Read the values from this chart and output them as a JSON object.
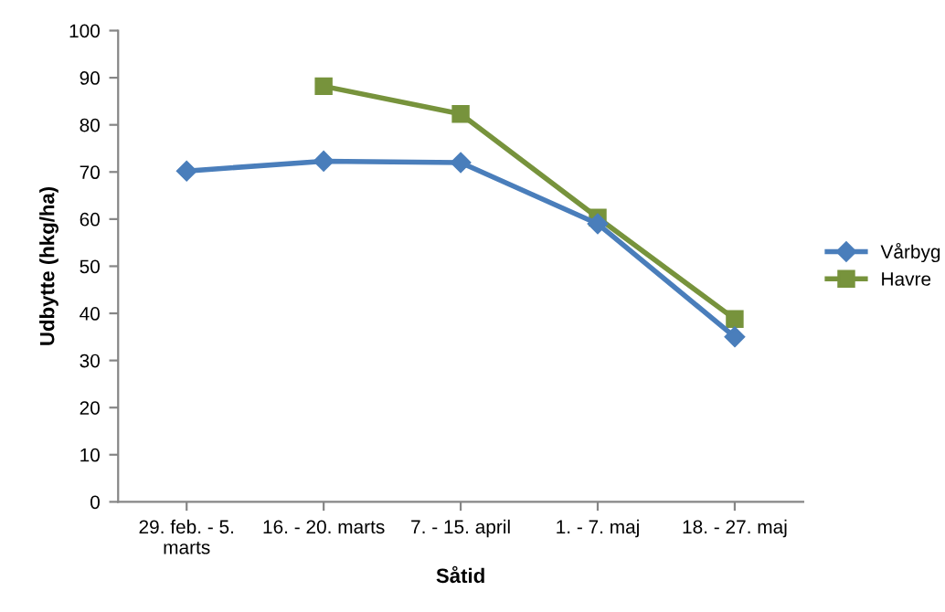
{
  "chart_data": {
    "type": "line",
    "xlabel": "Såtid",
    "ylabel": "Udbytte (hkg/ha)",
    "categories": [
      "29. feb. - 5.\nmarts",
      "16. - 20. marts",
      "7. - 15. april",
      "1. - 7. maj",
      "18. - 27. maj"
    ],
    "series": [
      {
        "name": "Vårbyg",
        "color": "#4a7ebb",
        "marker": "diamond",
        "values": [
          70.2,
          72.3,
          72,
          59,
          35
        ]
      },
      {
        "name": "Havre",
        "color": "#77933c",
        "marker": "square",
        "values": [
          null,
          88.2,
          82.3,
          60.3,
          38.8
        ]
      }
    ],
    "ylim": [
      0,
      100
    ],
    "yticks": [
      0,
      10,
      20,
      30,
      40,
      50,
      60,
      70,
      80,
      90,
      100
    ],
    "grid": false,
    "legend": "right",
    "line_style": "solid"
  }
}
